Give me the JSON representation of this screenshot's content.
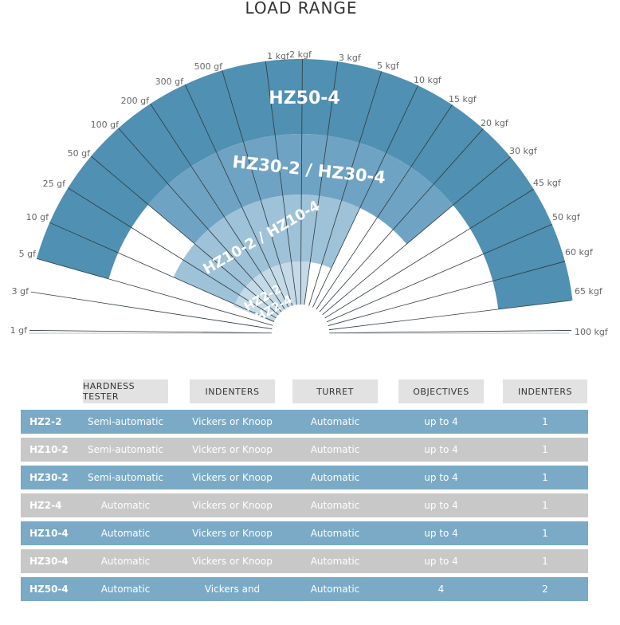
{
  "title": "LOAD RANGE",
  "chart": {
    "left_labels": [
      "1 gf",
      "3 gf",
      "5 gf",
      "10 gf",
      "25 gf",
      "50 gf",
      "100 gf",
      "200 gf",
      "300 gf",
      "500 gf",
      "1 kgf"
    ],
    "right_labels": [
      "2 kgf",
      "3 kgf",
      "5 kgf",
      "10 kgf",
      "15 kgf",
      "20 kgf",
      "30 kgf",
      "45 kgf",
      "50 kgf",
      "60 kgf",
      "65 kgf",
      "100 kgf"
    ],
    "bands": [
      {
        "name": "HZ50-4",
        "color": "#5090b2"
      },
      {
        "name": "HZ30-2 / HZ30-4",
        "color": "#6fa3c3"
      },
      {
        "name": "HZ10-2 / HZ10-4",
        "color": "#9ec2d8"
      },
      {
        "name": "HZ2-2",
        "color": "#c5dae7"
      },
      {
        "name": "HZ2-4",
        "color": "#c5dae7"
      }
    ]
  },
  "table": {
    "headers": [
      "HARDNESS TESTER",
      "INDENTERS",
      "TURRET",
      "OBJECTIVES",
      "INDENTERS"
    ],
    "rows": [
      {
        "model": "HZ2-2",
        "tester": "Semi-automatic",
        "indenters": "Vickers or Knoop",
        "turret": "Automatic",
        "objectives": "up to 4",
        "count": "1"
      },
      {
        "model": "HZ10-2",
        "tester": "Semi-automatic",
        "indenters": "Vickers or Knoop",
        "turret": "Automatic",
        "objectives": "up to 4",
        "count": "1"
      },
      {
        "model": "HZ30-2",
        "tester": "Semi-automatic",
        "indenters": "Vickers or Knoop",
        "turret": "Automatic",
        "objectives": "up to 4",
        "count": "1"
      },
      {
        "model": "HZ2-4",
        "tester": "Automatic",
        "indenters": "Vickers or Knoop",
        "turret": "Automatic",
        "objectives": "up to 4",
        "count": "1"
      },
      {
        "model": "HZ10-4",
        "tester": "Automatic",
        "indenters": "Vickers or Knoop",
        "turret": "Automatic",
        "objectives": "up to 4",
        "count": "1"
      },
      {
        "model": "HZ30-4",
        "tester": "Automatic",
        "indenters": "Vickers or Knoop",
        "turret": "Automatic",
        "objectives": "up to 4",
        "count": "1"
      },
      {
        "model": "HZ50-4",
        "tester": "Automatic",
        "indenters": "Vickers and Knoop",
        "turret": "Automatic",
        "objectives": "4",
        "count": "2"
      }
    ]
  }
}
